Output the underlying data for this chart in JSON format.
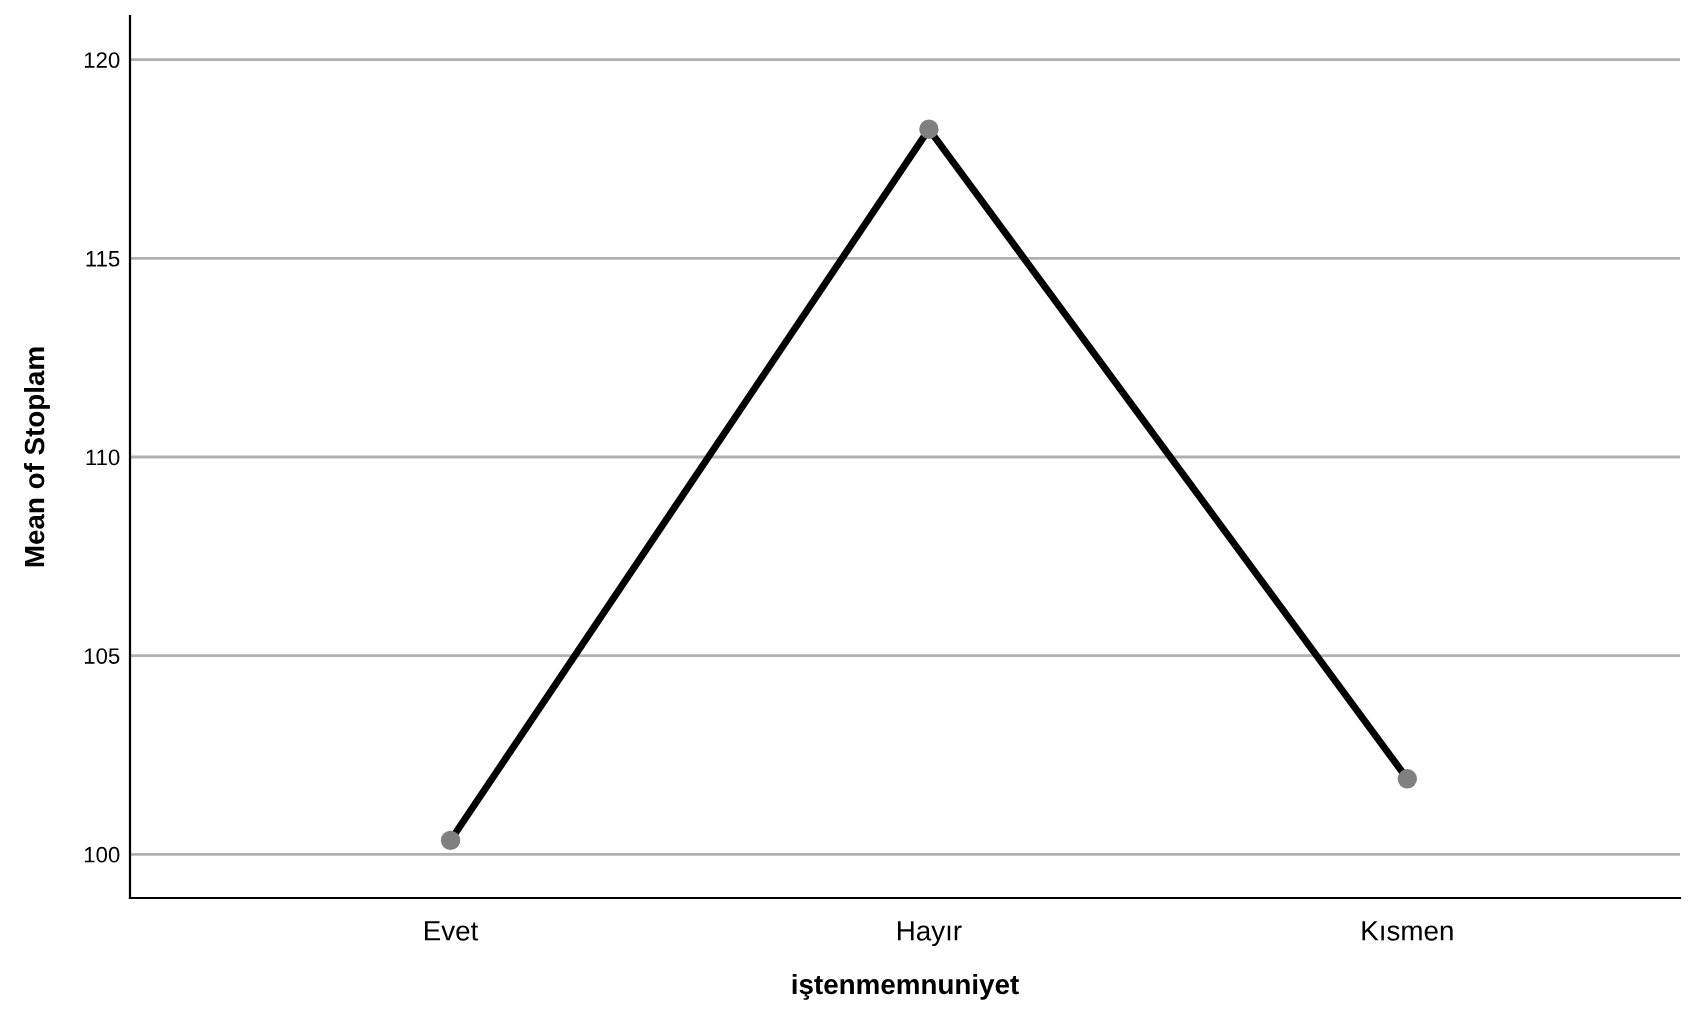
{
  "chart_data": {
    "type": "line",
    "xlabel": "iştenmemnuniyet",
    "ylabel": "Mean of Stoplam",
    "categories": [
      "Evet",
      "Hayır",
      "Kısmen"
    ],
    "series": [
      {
        "color": "#000000",
        "values": [
          100.35,
          118.25,
          101.9
        ]
      }
    ],
    "ylim": [
      98.9,
      121.1
    ],
    "yticks": [
      100,
      105,
      110,
      115,
      120
    ],
    "grid": "y",
    "marker": "circle",
    "line_style": "solid"
  }
}
